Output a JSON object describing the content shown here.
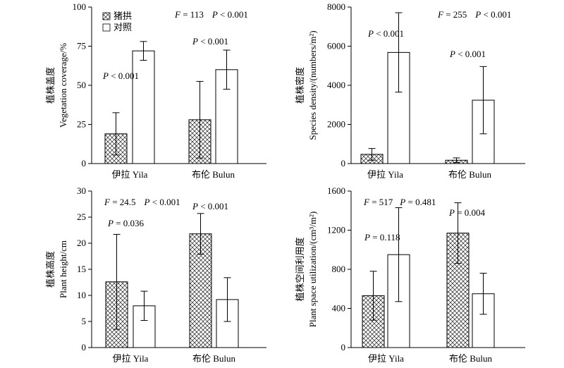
{
  "legend": {
    "items": [
      {
        "symbol": "hatched",
        "label": "猪拱"
      },
      {
        "symbol": "open",
        "label": "对照"
      }
    ]
  },
  "chart_data": [
    {
      "type": "bar",
      "categories": [
        "伊拉 Yila",
        "布伦 Bulun"
      ],
      "ylabel_cn": "植株盖度",
      "ylabel_en": "Vegetation coverage/%",
      "ylim": [
        0,
        100
      ],
      "yticks": [
        "0",
        "25",
        "50",
        "75",
        "100"
      ],
      "series": [
        {
          "name": "猪拱",
          "pattern": "hatched",
          "values": [
            19,
            28
          ],
          "errors": [
            13.5,
            24.5
          ]
        },
        {
          "name": "对照",
          "pattern": "open",
          "values": [
            72,
            60
          ],
          "errors": [
            6,
            12.5
          ]
        }
      ],
      "annotations": {
        "stat": {
          "F": "113",
          "P": "< 0.001"
        },
        "category_p": [
          "< 0.001",
          "< 0.001"
        ]
      }
    },
    {
      "type": "bar",
      "categories": [
        "伊拉 Yila",
        "布伦 Bulun"
      ],
      "ylabel_cn": "植株密度",
      "ylabel_en": "Species density/(numbers/m²)",
      "ylim": [
        0,
        8000
      ],
      "yticks": [
        "0",
        "2000",
        "4000",
        "6000",
        "8000"
      ],
      "series": [
        {
          "name": "猪拱",
          "pattern": "hatched",
          "values": [
            470,
            170
          ],
          "errors": [
            300,
            120
          ]
        },
        {
          "name": "对照",
          "pattern": "open",
          "values": [
            5680,
            3240
          ],
          "errors": [
            2030,
            1720
          ]
        }
      ],
      "annotations": {
        "stat": {
          "F": "255",
          "P": "< 0.001"
        },
        "category_p": [
          "< 0.001",
          "< 0.001"
        ]
      }
    },
    {
      "type": "bar",
      "categories": [
        "伊拉 Yila",
        "布伦 Bulun"
      ],
      "ylabel_cn": "植株高度",
      "ylabel_en": "Plant height/cm",
      "ylim": [
        0,
        30
      ],
      "yticks": [
        "0",
        "5",
        "10",
        "15",
        "20",
        "25",
        "30"
      ],
      "series": [
        {
          "name": "猪拱",
          "pattern": "hatched",
          "values": [
            12.6,
            21.8
          ],
          "errors": [
            9.1,
            3.9
          ]
        },
        {
          "name": "对照",
          "pattern": "open",
          "values": [
            8,
            9.2
          ],
          "errors": [
            2.8,
            4.2
          ]
        }
      ],
      "annotations": {
        "stat": {
          "F": "24.5",
          "P": "< 0.001"
        },
        "category_p": [
          "= 0.036",
          "< 0.001"
        ]
      }
    },
    {
      "type": "bar",
      "categories": [
        "伊拉 Yila",
        "布伦 Bulun"
      ],
      "ylabel_cn": "植株空间利用度",
      "ylabel_en": "Plant space utilization/(cm³/m²)",
      "ylim": [
        0,
        1600
      ],
      "yticks": [
        "0",
        "400",
        "800",
        "1200",
        "1600"
      ],
      "series": [
        {
          "name": "猪拱",
          "pattern": "hatched",
          "values": [
            530,
            1170
          ],
          "errors": [
            250,
            310
          ]
        },
        {
          "name": "对照",
          "pattern": "open",
          "values": [
            950,
            550
          ],
          "errors": [
            480,
            210
          ]
        }
      ],
      "annotations": {
        "stat": {
          "F": "517",
          "P": "0.481"
        },
        "category_p": [
          "= 0.118",
          "= 0.004"
        ]
      }
    }
  ]
}
